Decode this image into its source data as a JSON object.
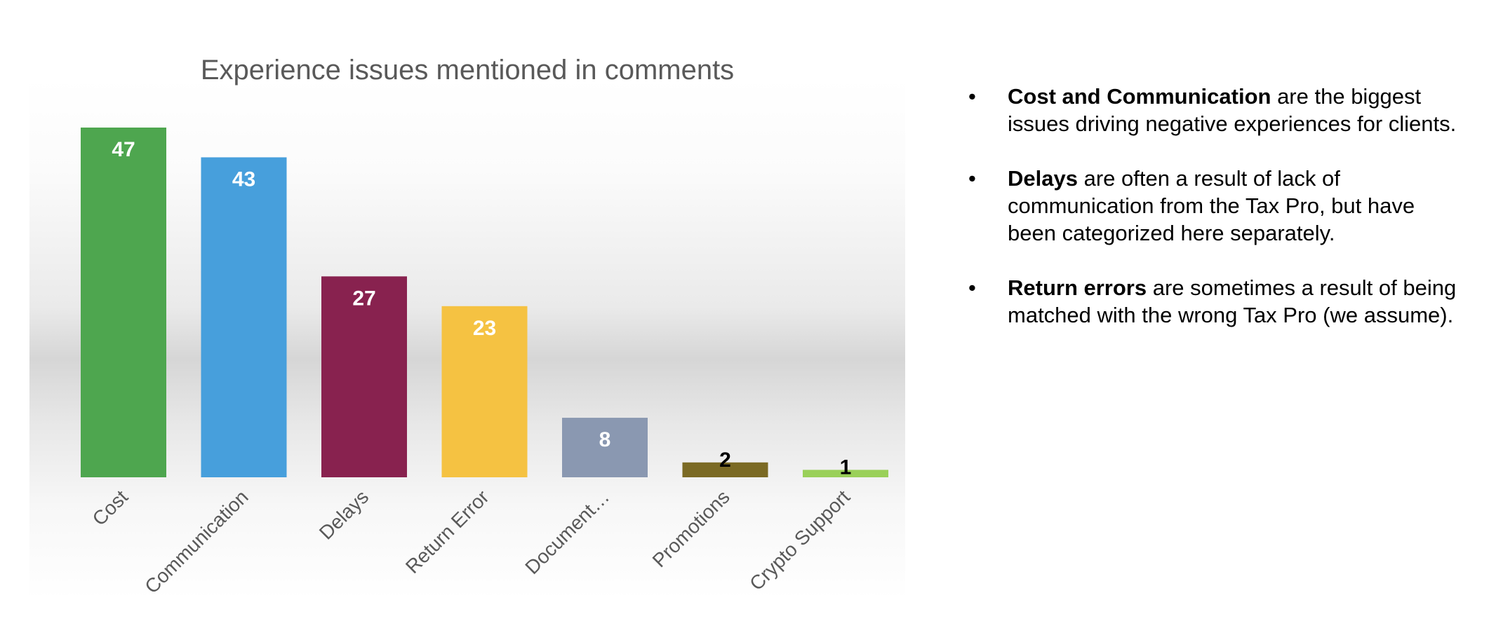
{
  "chart_data": {
    "type": "bar",
    "title": "Experience issues mentioned in comments",
    "categories": [
      "Cost",
      "Communication",
      "Delays",
      "Return Error",
      "Document…",
      "Promotions",
      "Crypto Support"
    ],
    "values": [
      47,
      43,
      27,
      23,
      8,
      2,
      1
    ],
    "colors": [
      "#4ea64f",
      "#479fdc",
      "#88224f",
      "#f5c242",
      "#8a98b1",
      "#7b6a24",
      "#9ad059"
    ],
    "label_colors": [
      "#ffffff",
      "#ffffff",
      "#ffffff",
      "#ffffff",
      "#ffffff",
      "#000000",
      "#000000"
    ],
    "xlabel": "",
    "ylabel": "",
    "ylim": [
      0,
      47
    ],
    "grid": false,
    "legend": "none"
  },
  "notes": [
    {
      "bullet": "•",
      "bold": "Cost and Communication",
      "text": " are the biggest issues driving negative experiences for clients."
    },
    {
      "bullet": "•",
      "bold": "Delays",
      "text": " are often a result of lack of communication from the Tax Pro, but have been categorized here separately."
    },
    {
      "bullet": "•",
      "bold": "Return errors",
      "text": " are sometimes a result of being matched with the wrong Tax Pro (we assume)."
    }
  ]
}
